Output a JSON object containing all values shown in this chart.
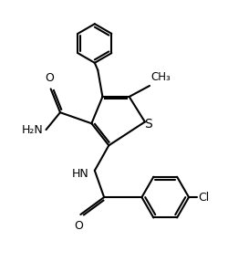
{
  "background": "#ffffff",
  "line_color": "#000000",
  "line_width": 1.5,
  "font_size": 9,
  "figsize": [
    2.73,
    2.98
  ],
  "dpi": 100,
  "xlim": [
    -2.0,
    5.0
  ],
  "ylim": [
    -4.5,
    4.0
  ]
}
